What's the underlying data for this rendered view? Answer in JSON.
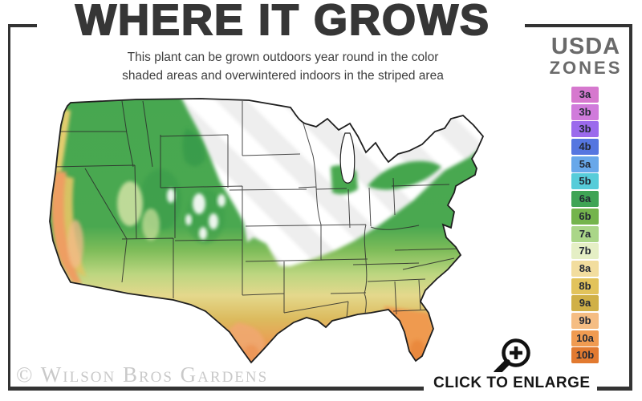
{
  "header": {
    "title": "WHERE IT GROWS",
    "subtitle_line1": "This plant can be grown outdoors year round in the color",
    "subtitle_line2": "shaded areas and overwintered indoors in the striped area"
  },
  "legend": {
    "title_line1": "USDA",
    "title_line2": "ZONES",
    "zones": [
      {
        "label": "3a",
        "color": "#d678ce"
      },
      {
        "label": "3b",
        "color": "#d07bdb"
      },
      {
        "label": "3b",
        "color": "#9b6aec"
      },
      {
        "label": "4b",
        "color": "#5576e0"
      },
      {
        "label": "5a",
        "color": "#68a8ea"
      },
      {
        "label": "5b",
        "color": "#57ccd9"
      },
      {
        "label": "6a",
        "color": "#3fa455"
      },
      {
        "label": "6b",
        "color": "#74b44c"
      },
      {
        "label": "7a",
        "color": "#aad688"
      },
      {
        "label": "7b",
        "color": "#e5efc5"
      },
      {
        "label": "8a",
        "color": "#f2dd9e"
      },
      {
        "label": "8b",
        "color": "#e2c35b"
      },
      {
        "label": "9a",
        "color": "#d0b047"
      },
      {
        "label": "9b",
        "color": "#f5bd83"
      },
      {
        "label": "10a",
        "color": "#f09b51"
      },
      {
        "label": "10b",
        "color": "#e27a30"
      }
    ]
  },
  "footer": {
    "watermark": "© Wilson Bros Gardens",
    "enlarge_label": "CLICK TO ENLARGE",
    "magnifier_icon": "zoom-in-magnifier-icon"
  },
  "colors": {
    "frame": "#333333",
    "title_text": "#363636",
    "legend_title_text": "#6a6a6a",
    "watermark_text": "#c9c9c9"
  }
}
